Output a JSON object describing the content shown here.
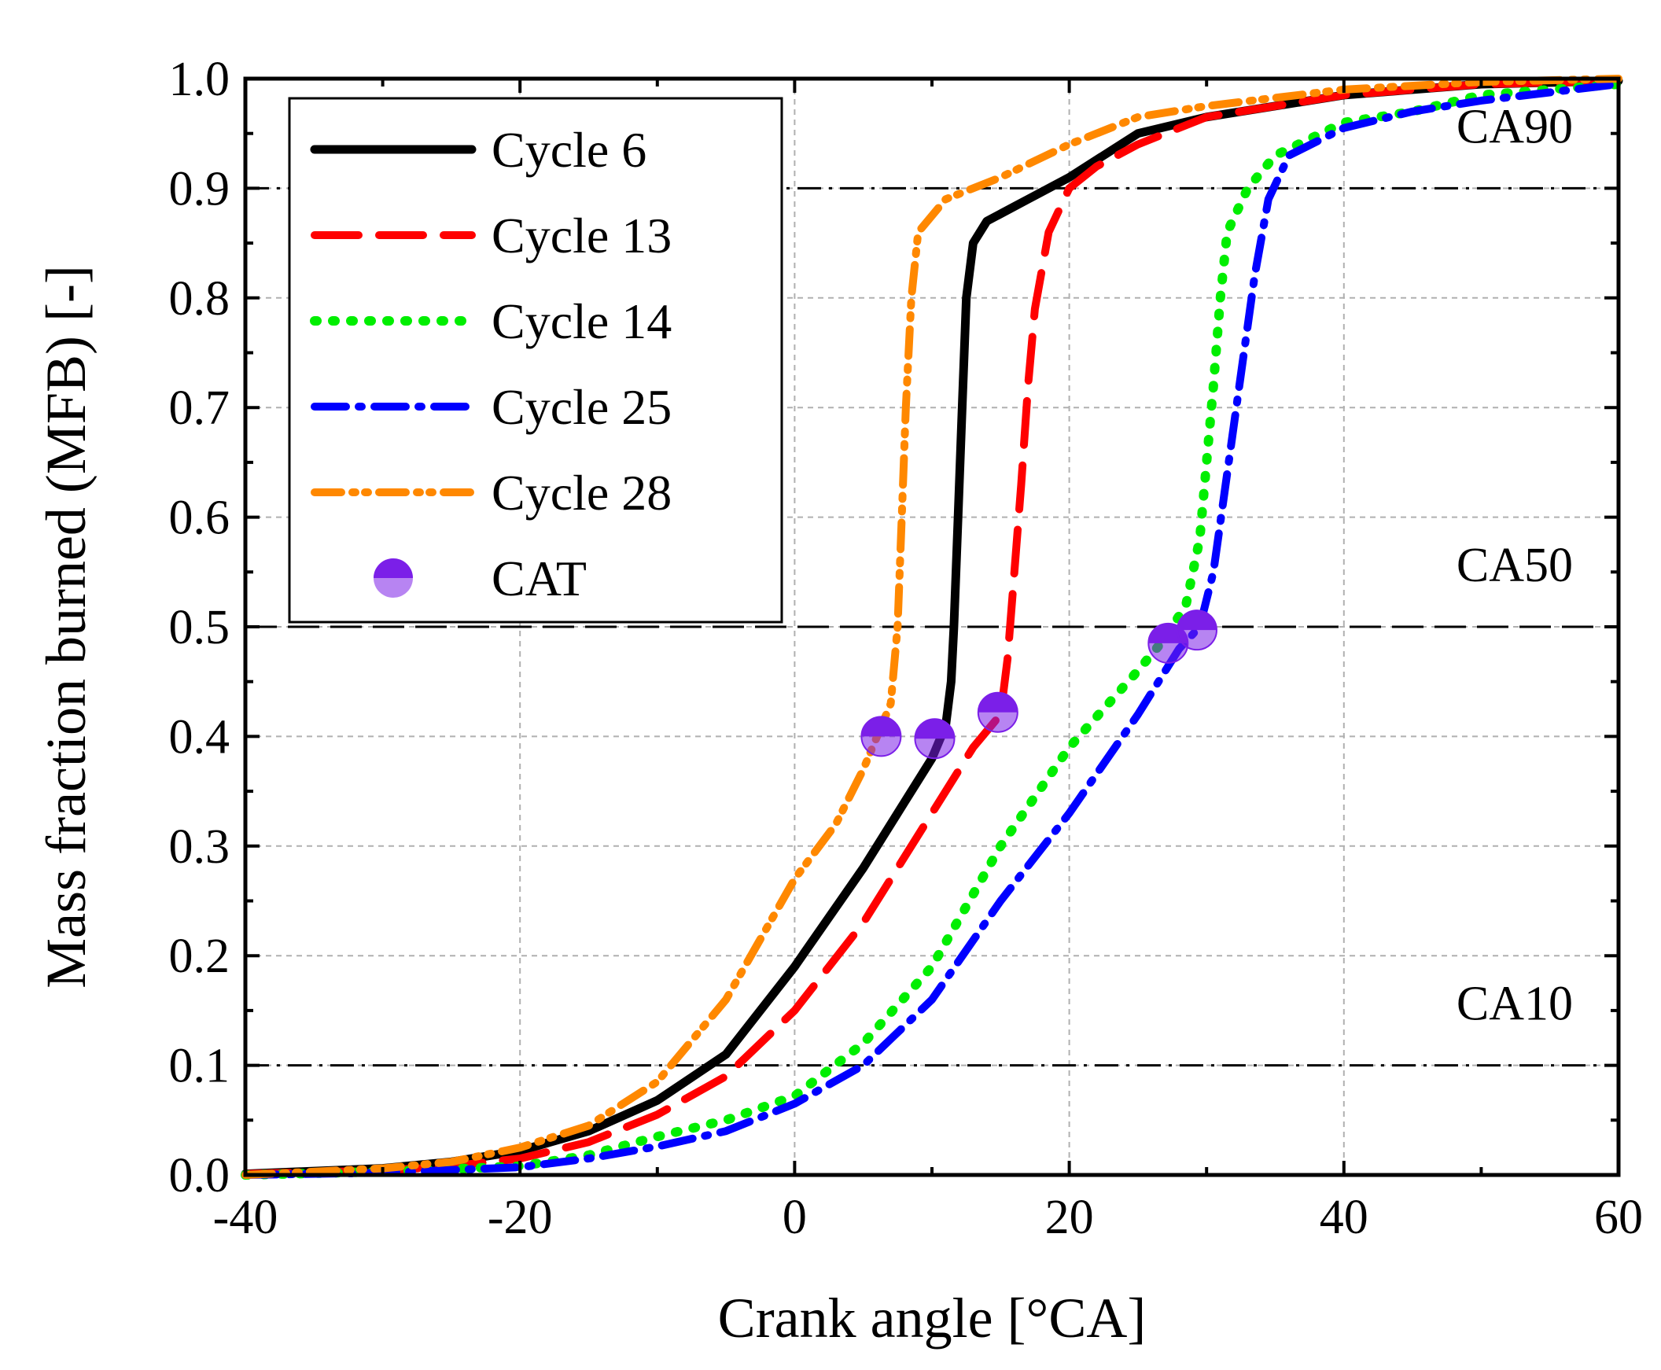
{
  "chart_data": {
    "type": "line",
    "title": "",
    "xlabel": "Crank angle [°CA]",
    "ylabel": "Mass fraction burned (MFB) [-]",
    "xlim": [
      -40,
      60
    ],
    "ylim": [
      0.0,
      1.0
    ],
    "x_ticks": [
      "-40",
      "-20",
      "0",
      "20",
      "40",
      "60"
    ],
    "y_ticks": [
      "0.0",
      "0.1",
      "0.2",
      "0.3",
      "0.4",
      "0.5",
      "0.6",
      "0.7",
      "0.8",
      "0.9",
      "1.0"
    ],
    "grid": true,
    "legend_position": "top-left",
    "reference_lines": [
      {
        "y": 0.1,
        "label": "CA10"
      },
      {
        "y": 0.5,
        "label": "CA50"
      },
      {
        "y": 0.9,
        "label": "CA90"
      }
    ],
    "series": [
      {
        "name": "Cycle 6",
        "color": "#000000",
        "style": "solid",
        "points": [
          [
            -40,
            0.001
          ],
          [
            -30,
            0.006
          ],
          [
            -25,
            0.012
          ],
          [
            -20,
            0.022
          ],
          [
            -15,
            0.04
          ],
          [
            -10,
            0.068
          ],
          [
            -5,
            0.11
          ],
          [
            0,
            0.19
          ],
          [
            5,
            0.28
          ],
          [
            8,
            0.34
          ],
          [
            10,
            0.38
          ],
          [
            11,
            0.41
          ],
          [
            11.4,
            0.45
          ],
          [
            11.6,
            0.5
          ],
          [
            11.9,
            0.6
          ],
          [
            12.2,
            0.7
          ],
          [
            12.5,
            0.8
          ],
          [
            13,
            0.85
          ],
          [
            14,
            0.87
          ],
          [
            17,
            0.89
          ],
          [
            20,
            0.91
          ],
          [
            25,
            0.95
          ],
          [
            30,
            0.965
          ],
          [
            40,
            0.985
          ],
          [
            50,
            0.995
          ],
          [
            60,
            0.998
          ]
        ]
      },
      {
        "name": "Cycle 13",
        "color": "#ff0000",
        "style": "dash",
        "points": [
          [
            -40,
            0.001
          ],
          [
            -30,
            0.004
          ],
          [
            -25,
            0.008
          ],
          [
            -20,
            0.015
          ],
          [
            -15,
            0.03
          ],
          [
            -10,
            0.055
          ],
          [
            -5,
            0.09
          ],
          [
            0,
            0.15
          ],
          [
            5,
            0.23
          ],
          [
            10,
            0.33
          ],
          [
            13,
            0.39
          ],
          [
            15,
            0.42
          ],
          [
            15.5,
            0.47
          ],
          [
            16,
            0.55
          ],
          [
            16.5,
            0.63
          ],
          [
            17,
            0.72
          ],
          [
            17.5,
            0.79
          ],
          [
            18.5,
            0.86
          ],
          [
            20,
            0.9
          ],
          [
            22,
            0.92
          ],
          [
            25,
            0.94
          ],
          [
            30,
            0.965
          ],
          [
            40,
            0.985
          ],
          [
            50,
            0.995
          ],
          [
            60,
            0.998
          ]
        ]
      },
      {
        "name": "Cycle 14",
        "color": "#00ee00",
        "style": "dot",
        "points": [
          [
            -40,
            0.0
          ],
          [
            -30,
            0.003
          ],
          [
            -20,
            0.008
          ],
          [
            -15,
            0.018
          ],
          [
            -10,
            0.035
          ],
          [
            -5,
            0.05
          ],
          [
            0,
            0.072
          ],
          [
            5,
            0.12
          ],
          [
            10,
            0.19
          ],
          [
            15,
            0.3
          ],
          [
            20,
            0.39
          ],
          [
            25,
            0.46
          ],
          [
            27,
            0.49
          ],
          [
            28.5,
            0.52
          ],
          [
            29.5,
            0.58
          ],
          [
            30,
            0.65
          ],
          [
            30.5,
            0.72
          ],
          [
            31,
            0.8
          ],
          [
            31.5,
            0.86
          ],
          [
            33,
            0.9
          ],
          [
            35,
            0.93
          ],
          [
            40,
            0.96
          ],
          [
            45,
            0.97
          ],
          [
            50,
            0.985
          ],
          [
            60,
            0.995
          ]
        ]
      },
      {
        "name": "Cycle 25",
        "color": "#0000ff",
        "style": "dashdot",
        "points": [
          [
            -40,
            0.0
          ],
          [
            -30,
            0.002
          ],
          [
            -20,
            0.007
          ],
          [
            -15,
            0.015
          ],
          [
            -10,
            0.026
          ],
          [
            -5,
            0.04
          ],
          [
            0,
            0.065
          ],
          [
            5,
            0.1
          ],
          [
            10,
            0.16
          ],
          [
            15,
            0.25
          ],
          [
            20,
            0.33
          ],
          [
            25,
            0.42
          ],
          [
            28,
            0.48
          ],
          [
            29.5,
            0.5
          ],
          [
            30.5,
            0.55
          ],
          [
            31.5,
            0.64
          ],
          [
            32.5,
            0.73
          ],
          [
            33.5,
            0.82
          ],
          [
            34.5,
            0.89
          ],
          [
            36,
            0.93
          ],
          [
            40,
            0.955
          ],
          [
            45,
            0.97
          ],
          [
            50,
            0.98
          ],
          [
            60,
            0.995
          ]
        ]
      },
      {
        "name": "Cycle 28",
        "color": "#ff8800",
        "style": "dashdotdot",
        "points": [
          [
            -40,
            0.0
          ],
          [
            -30,
            0.006
          ],
          [
            -25,
            0.012
          ],
          [
            -20,
            0.025
          ],
          [
            -15,
            0.045
          ],
          [
            -10,
            0.085
          ],
          [
            -5,
            0.16
          ],
          [
            0,
            0.27
          ],
          [
            3,
            0.32
          ],
          [
            5,
            0.37
          ],
          [
            6,
            0.4
          ],
          [
            7,
            0.43
          ],
          [
            7.5,
            0.5
          ],
          [
            7.8,
            0.6
          ],
          [
            8.1,
            0.7
          ],
          [
            8.5,
            0.8
          ],
          [
            9,
            0.86
          ],
          [
            11,
            0.89
          ],
          [
            15,
            0.91
          ],
          [
            20,
            0.94
          ],
          [
            25,
            0.965
          ],
          [
            30,
            0.975
          ],
          [
            40,
            0.99
          ],
          [
            50,
            0.997
          ],
          [
            60,
            1.0
          ]
        ]
      }
    ],
    "markers": {
      "name": "CAT",
      "color": "#7b1fe8",
      "points": [
        [
          6.3,
          0.4
        ],
        [
          10.2,
          0.398
        ],
        [
          14.8,
          0.422
        ],
        [
          27.2,
          0.485
        ],
        [
          29.3,
          0.497
        ]
      ]
    }
  }
}
